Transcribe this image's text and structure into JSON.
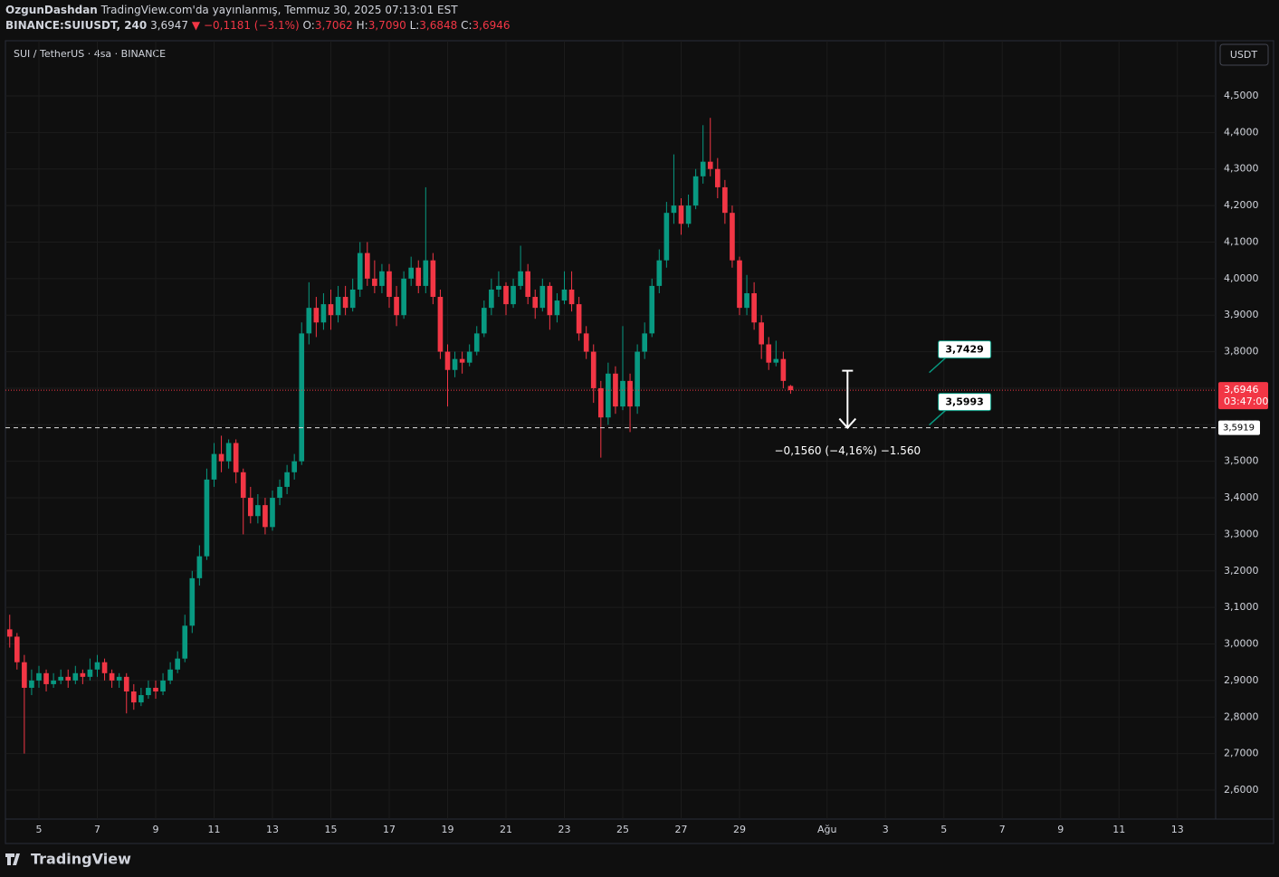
{
  "header": {
    "author": "OzgunDashdan",
    "published": "TradingView.com'da yayınlanmış, Temmuz 30, 2025 07:13:01 EST",
    "symbol": "BINANCE:SUIUSDT, 240",
    "last": "3,6947",
    "change": "▼ −0,1181 (−3.1%)",
    "ohlc": [
      {
        "key": "O:",
        "value": "3,7062"
      },
      {
        "key": "H:",
        "value": "3,7090"
      },
      {
        "key": "L:",
        "value": "3,6848"
      },
      {
        "key": "C:",
        "value": "3,6946"
      }
    ],
    "legend": "SUI / TetherUS · 4sa · BINANCE",
    "currency": "USDT",
    "brand": "TradingView"
  },
  "chart_data": {
    "type": "candlestick",
    "colors": {
      "up": "#089981",
      "down": "#f23645"
    },
    "x": [
      4,
      4.25,
      4.5,
      4.75,
      5,
      5.25,
      5.5,
      5.75,
      6,
      6.25,
      6.5,
      6.75,
      7,
      7.25,
      7.5,
      7.75,
      8,
      8.25,
      8.5,
      8.75,
      9,
      9.25,
      9.5,
      9.75,
      10,
      10.25,
      10.5,
      10.75,
      11,
      11.25,
      11.5,
      11.75,
      12,
      12.25,
      12.5,
      12.75,
      13,
      13.25,
      13.5,
      13.75,
      14,
      14.25,
      14.5,
      14.75,
      15,
      15.25,
      15.5,
      15.75,
      16,
      16.25,
      16.5,
      16.75,
      17,
      17.25,
      17.5,
      17.75,
      18,
      18.25,
      18.5,
      18.75,
      19,
      19.25,
      19.5,
      19.75,
      20,
      20.25,
      20.5,
      20.75,
      21,
      21.25,
      21.5,
      21.75,
      22,
      22.25,
      22.5,
      22.75,
      23,
      23.25,
      23.5,
      23.75,
      24,
      24.25,
      24.5,
      24.75,
      25,
      25.25,
      25.5,
      25.75,
      26,
      26.25,
      26.5,
      26.75,
      27,
      27.25,
      27.5,
      27.75,
      28,
      28.25,
      28.5,
      28.75,
      29,
      29.25,
      29.5,
      29.75,
      30,
      30.25,
      30.5,
      30.75
    ],
    "open": [
      3.04,
      3.02,
      2.95,
      2.88,
      2.9,
      2.92,
      2.89,
      2.9,
      2.91,
      2.9,
      2.92,
      2.91,
      2.93,
      2.95,
      2.92,
      2.9,
      2.91,
      2.87,
      2.84,
      2.86,
      2.88,
      2.87,
      2.9,
      2.93,
      2.96,
      3.05,
      3.18,
      3.24,
      3.45,
      3.52,
      3.5,
      3.55,
      3.47,
      3.4,
      3.35,
      3.38,
      3.32,
      3.4,
      3.43,
      3.47,
      3.5,
      3.85,
      3.92,
      3.88,
      3.93,
      3.9,
      3.95,
      3.92,
      3.97,
      4.07,
      4.0,
      3.98,
      4.02,
      3.95,
      3.9,
      4.0,
      4.03,
      3.98,
      4.05,
      3.95,
      3.8,
      3.75,
      3.78,
      3.77,
      3.8,
      3.85,
      3.92,
      3.97,
      3.98,
      3.93,
      3.98,
      4.02,
      3.95,
      3.92,
      3.98,
      3.9,
      3.94,
      3.97,
      3.93,
      3.85,
      3.8,
      3.7,
      3.62,
      3.74,
      3.65,
      3.72,
      3.65,
      3.8,
      3.85,
      3.98,
      4.05,
      4.18,
      4.2,
      4.15,
      4.2,
      4.28,
      4.32,
      4.3,
      4.25,
      4.18,
      4.05,
      3.92,
      3.96,
      3.88,
      3.82,
      3.77,
      3.78,
      3.7062
    ],
    "high": [
      3.08,
      3.03,
      2.97,
      2.93,
      2.94,
      2.93,
      2.92,
      2.93,
      2.93,
      2.94,
      2.93,
      2.96,
      2.97,
      2.96,
      2.93,
      2.92,
      2.92,
      2.89,
      2.88,
      2.9,
      2.9,
      2.92,
      2.95,
      2.98,
      3.08,
      3.2,
      3.27,
      3.48,
      3.55,
      3.57,
      3.56,
      3.56,
      3.48,
      3.43,
      3.41,
      3.4,
      3.42,
      3.45,
      3.49,
      3.52,
      3.88,
      3.99,
      3.95,
      3.96,
      3.97,
      3.98,
      3.98,
      4.0,
      4.1,
      4.1,
      4.05,
      4.04,
      4.04,
      3.98,
      4.02,
      4.06,
      4.05,
      4.25,
      4.07,
      3.97,
      3.82,
      3.8,
      3.8,
      3.82,
      3.87,
      3.94,
      4.0,
      4.02,
      3.99,
      4.0,
      4.09,
      4.04,
      3.97,
      4.0,
      3.99,
      3.96,
      4.02,
      4.02,
      3.95,
      3.87,
      3.82,
      3.72,
      3.77,
      3.76,
      3.87,
      3.74,
      3.82,
      3.88,
      4.0,
      4.08,
      4.21,
      4.34,
      4.22,
      4.23,
      4.3,
      4.42,
      4.44,
      4.33,
      4.27,
      4.2,
      4.06,
      4.01,
      3.99,
      3.9,
      3.84,
      3.83,
      3.8,
      3.709
    ],
    "low": [
      2.99,
      2.93,
      2.7,
      2.86,
      2.88,
      2.87,
      2.88,
      2.89,
      2.88,
      2.89,
      2.89,
      2.9,
      2.91,
      2.9,
      2.88,
      2.88,
      2.81,
      2.82,
      2.83,
      2.85,
      2.85,
      2.86,
      2.89,
      2.92,
      2.95,
      3.03,
      3.16,
      3.23,
      3.43,
      3.47,
      3.48,
      3.44,
      3.3,
      3.33,
      3.33,
      3.3,
      3.31,
      3.38,
      3.41,
      3.45,
      3.49,
      3.82,
      3.84,
      3.86,
      3.86,
      3.88,
      3.9,
      3.91,
      3.95,
      3.98,
      3.96,
      3.96,
      3.92,
      3.87,
      3.89,
      3.98,
      3.96,
      3.96,
      3.93,
      3.78,
      3.65,
      3.73,
      3.74,
      3.76,
      3.79,
      3.84,
      3.9,
      3.95,
      3.9,
      3.92,
      3.97,
      3.93,
      3.89,
      3.91,
      3.86,
      3.88,
      3.93,
      3.91,
      3.83,
      3.78,
      3.66,
      3.51,
      3.6,
      3.63,
      3.64,
      3.58,
      3.63,
      3.78,
      3.84,
      3.96,
      4.03,
      4.15,
      4.12,
      4.14,
      4.19,
      4.26,
      4.28,
      4.22,
      4.15,
      4.03,
      3.9,
      3.9,
      3.86,
      3.78,
      3.75,
      3.76,
      3.7,
      3.6848
    ],
    "close": [
      3.02,
      2.95,
      2.88,
      2.9,
      2.92,
      2.89,
      2.9,
      2.91,
      2.9,
      2.92,
      2.91,
      2.93,
      2.95,
      2.92,
      2.9,
      2.91,
      2.87,
      2.84,
      2.86,
      2.88,
      2.87,
      2.9,
      2.93,
      2.96,
      3.05,
      3.18,
      3.24,
      3.45,
      3.52,
      3.5,
      3.55,
      3.47,
      3.4,
      3.35,
      3.38,
      3.32,
      3.4,
      3.43,
      3.47,
      3.5,
      3.85,
      3.92,
      3.88,
      3.93,
      3.9,
      3.95,
      3.92,
      3.97,
      4.07,
      4.0,
      3.98,
      4.02,
      3.95,
      3.9,
      4.0,
      4.03,
      3.98,
      4.05,
      3.95,
      3.8,
      3.75,
      3.78,
      3.77,
      3.8,
      3.85,
      3.92,
      3.97,
      3.98,
      3.93,
      3.98,
      4.02,
      3.95,
      3.92,
      3.98,
      3.9,
      3.94,
      3.97,
      3.93,
      3.85,
      3.8,
      3.7,
      3.62,
      3.74,
      3.65,
      3.72,
      3.65,
      3.8,
      3.85,
      3.98,
      4.05,
      4.18,
      4.2,
      4.15,
      4.2,
      4.28,
      4.32,
      4.3,
      4.25,
      4.18,
      4.05,
      3.92,
      3.96,
      3.88,
      3.82,
      3.77,
      3.78,
      3.72,
      3.6946
    ],
    "xlim": [
      3.853,
      45.31
    ],
    "ylim": [
      2.5207,
      4.6511
    ],
    "xticks": [
      5,
      7,
      9,
      11,
      13,
      15,
      17,
      19,
      21,
      23,
      25,
      27,
      29,
      {
        "value": 32,
        "label": "Ağu"
      },
      {
        "value": 34,
        "label": "3"
      },
      {
        "value": 36,
        "label": "5"
      },
      {
        "value": 38,
        "label": "7"
      },
      {
        "value": 40,
        "label": "9"
      },
      {
        "value": 42,
        "label": "11"
      },
      {
        "value": 44,
        "label": "13"
      }
    ],
    "yticks": [
      {
        "value": 2.6,
        "label": "2,6000"
      },
      {
        "value": 2.7,
        "label": "2,7000"
      },
      {
        "value": 2.8,
        "label": "2,8000"
      },
      {
        "value": 2.9,
        "label": "2,9000"
      },
      {
        "value": 3.0,
        "label": "3,0000"
      },
      {
        "value": 3.1,
        "label": "3,1000"
      },
      {
        "value": 3.2,
        "label": "3,2000"
      },
      {
        "value": 3.3,
        "label": "3,3000"
      },
      {
        "value": 3.4,
        "label": "3,4000"
      },
      {
        "value": 3.5,
        "label": "3,5000"
      },
      {
        "value": 3.6,
        "label": "3,6000"
      },
      {
        "value": 3.7,
        "label": "3,7000"
      },
      {
        "value": 3.8,
        "label": "3,8000"
      },
      {
        "value": 3.9,
        "label": "3,9000"
      },
      {
        "value": 4.0,
        "label": "4,0000"
      },
      {
        "value": 4.1,
        "label": "4,1000"
      },
      {
        "value": 4.2,
        "label": "4,2000"
      },
      {
        "value": 4.3,
        "label": "4,3000"
      },
      {
        "value": 4.4,
        "label": "4,4000"
      },
      {
        "value": 4.5,
        "label": "4,5000"
      }
    ],
    "grid": true,
    "last_price": {
      "value": 3.6946,
      "label": "3,6946"
    },
    "countdown": "03:47:00",
    "level": {
      "value": 3.5919,
      "label": "3,5919"
    },
    "measure": {
      "x": 32.7,
      "from": 3.7479,
      "to": 3.5919,
      "label": "−0,1560 (−4,16%) −1.560"
    },
    "notes": [
      {
        "x": 35.5,
        "y": 3.7429,
        "label": "3,7429"
      },
      {
        "x": 35.5,
        "y": 3.5993,
        "label": "3,5993"
      }
    ]
  }
}
